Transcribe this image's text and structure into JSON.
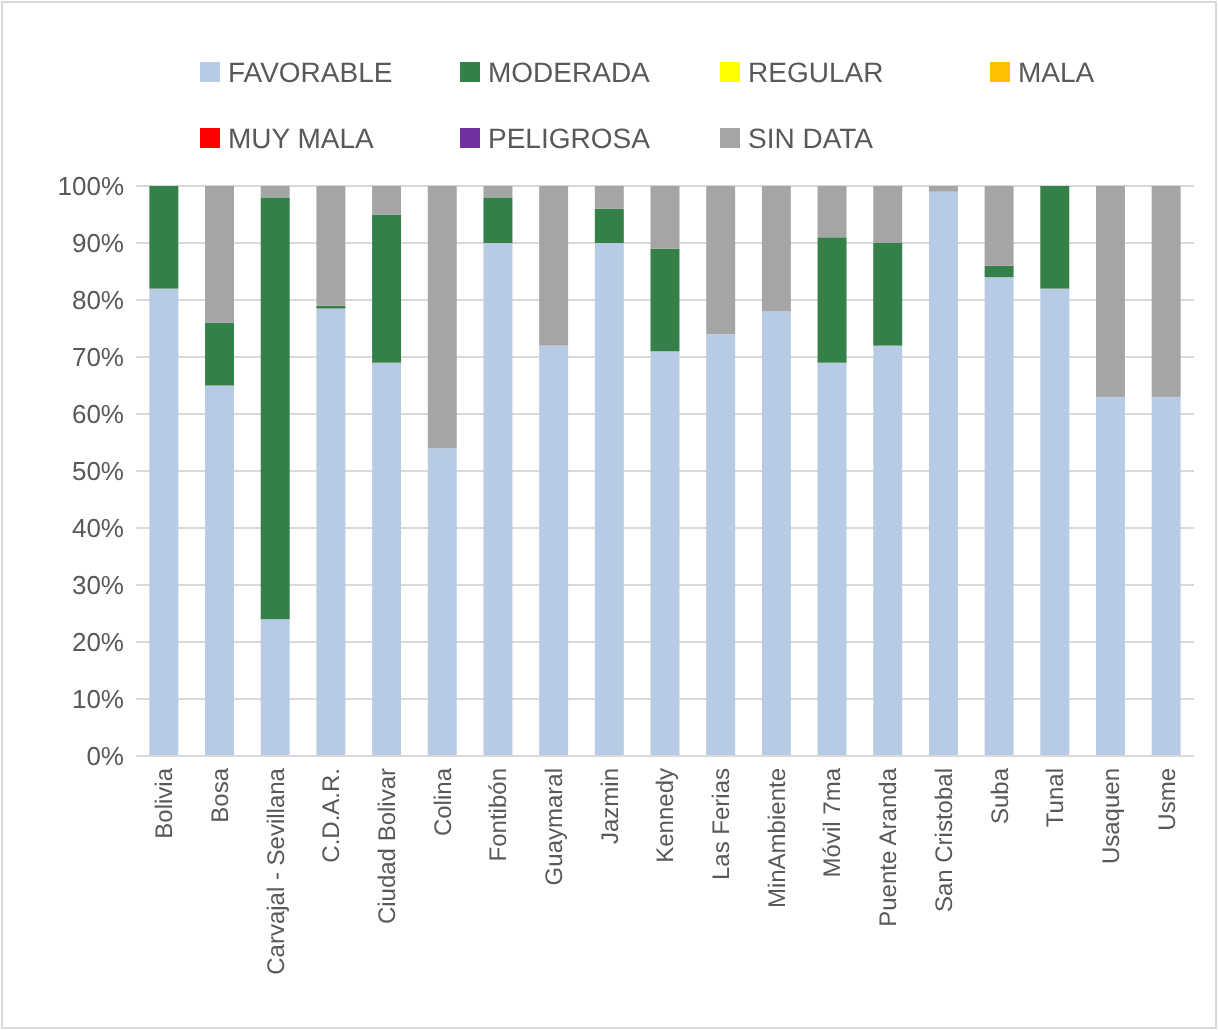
{
  "chart_data": {
    "type": "bar",
    "stacked": true,
    "legend": "top",
    "grid": "y",
    "categories": [
      "Bolivia",
      "Bosa",
      "Carvajal - Sevillana",
      "C.D.A.R.",
      "Ciudad Bolivar",
      "Colina",
      "Fontibón",
      "Guaymaral",
      "Jazmin",
      "Kennedy",
      "Las Ferias",
      "MinAmbiente",
      "Móvil 7ma",
      "Puente Aranda",
      "San Cristobal",
      "Suba",
      "Tunal",
      "Usaquen",
      "Usme"
    ],
    "ylim": [
      0,
      100
    ],
    "yticks": [
      {
        "value": 0,
        "label": "0%"
      },
      {
        "value": 10,
        "label": "10%"
      },
      {
        "value": 20,
        "label": "20%"
      },
      {
        "value": 30,
        "label": "30%"
      },
      {
        "value": 40,
        "label": "40%"
      },
      {
        "value": 50,
        "label": "50%"
      },
      {
        "value": 60,
        "label": "60%"
      },
      {
        "value": 70,
        "label": "70%"
      },
      {
        "value": 80,
        "label": "80%"
      },
      {
        "value": 90,
        "label": "90%"
      },
      {
        "value": 100,
        "label": "100%"
      }
    ],
    "series": [
      {
        "name": "FAVORABLE",
        "color": "#b7cce4",
        "values": [
          82,
          65,
          24,
          78.5,
          69,
          54,
          90,
          72,
          90,
          71,
          74,
          78,
          69,
          72,
          99,
          84,
          82,
          63,
          63
        ]
      },
      {
        "name": "MODERADA",
        "color": "#357f48",
        "values": [
          18,
          11,
          74,
          0.5,
          26,
          0,
          8,
          0,
          6,
          18,
          0,
          0,
          22,
          18,
          0,
          2,
          18,
          0,
          0
        ]
      },
      {
        "name": "REGULAR",
        "color": "#ffff00",
        "values": [
          0,
          0,
          0,
          0,
          0,
          0,
          0,
          0,
          0,
          0,
          0,
          0,
          0,
          0,
          0,
          0,
          0,
          0,
          0
        ]
      },
      {
        "name": "MALA",
        "color": "#ffc000",
        "values": [
          0,
          0,
          0,
          0,
          0,
          0,
          0,
          0,
          0,
          0,
          0,
          0,
          0,
          0,
          0,
          0,
          0,
          0,
          0
        ]
      },
      {
        "name": "MUY MALA",
        "color": "#ff0000",
        "values": [
          0,
          0,
          0,
          0,
          0,
          0,
          0,
          0,
          0,
          0,
          0,
          0,
          0,
          0,
          0,
          0,
          0,
          0,
          0
        ]
      },
      {
        "name": "PELIGROSA",
        "color": "#7030a0",
        "values": [
          0,
          0,
          0,
          0,
          0,
          0,
          0,
          0,
          0,
          0,
          0,
          0,
          0,
          0,
          0,
          0,
          0,
          0,
          0
        ]
      },
      {
        "name": "SIN DATA",
        "color": "#a5a5a5",
        "values": [
          0,
          24,
          2,
          21,
          5,
          46,
          2,
          28,
          4,
          11,
          26,
          22,
          9,
          10,
          1,
          14,
          0,
          37,
          37
        ]
      }
    ]
  }
}
